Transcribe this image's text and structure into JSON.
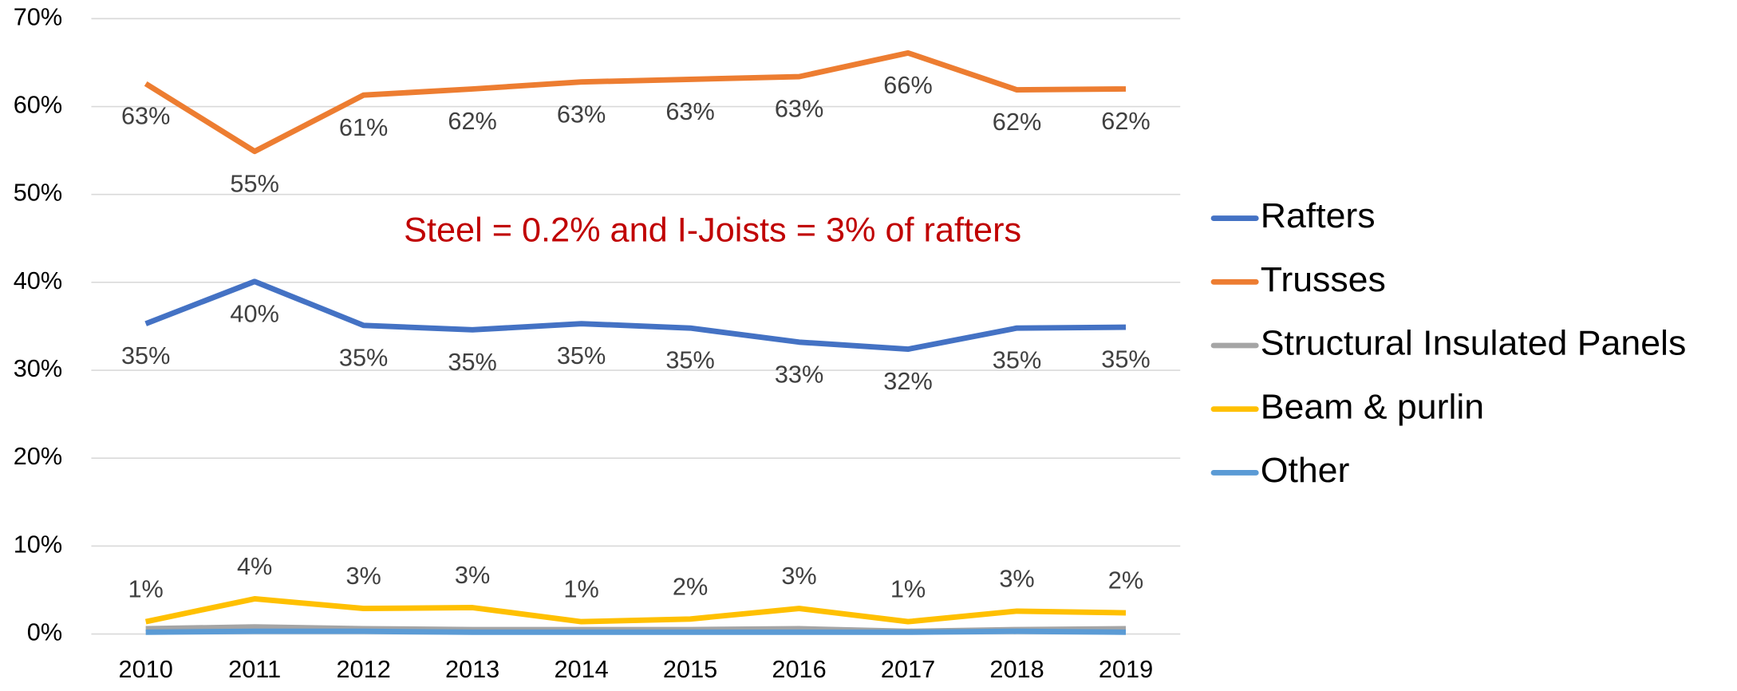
{
  "chart_data": {
    "type": "line",
    "annotation": "Steel = 0.2% and I-Joists = 3% of rafters",
    "categories": [
      "2010",
      "2011",
      "2012",
      "2013",
      "2014",
      "2015",
      "2016",
      "2017",
      "2018",
      "2019"
    ],
    "series": [
      {
        "name": "Rafters",
        "color": "#4472C4",
        "label_position": "below",
        "values": [
          35.3,
          40.1,
          35.1,
          34.6,
          35.3,
          34.8,
          33.2,
          32.4,
          34.8,
          34.9
        ],
        "value_labels": [
          "35%",
          "40%",
          "35%",
          "35%",
          "35%",
          "35%",
          "33%",
          "32%",
          "35%",
          "35%"
        ]
      },
      {
        "name": "Trusses",
        "color": "#ED7D31",
        "label_position": "below",
        "values": [
          62.6,
          54.9,
          61.3,
          62.0,
          62.8,
          63.1,
          63.4,
          66.1,
          61.9,
          62.0
        ],
        "value_labels": [
          "63%",
          "55%",
          "61%",
          "62%",
          "63%",
          "63%",
          "63%",
          "66%",
          "62%",
          "62%"
        ]
      },
      {
        "name": "Structural Insulated Panels",
        "color": "#A5A5A5",
        "values": [
          0.6,
          0.8,
          0.6,
          0.5,
          0.5,
          0.5,
          0.6,
          0.3,
          0.5,
          0.6
        ]
      },
      {
        "name": "Beam & purlin",
        "color": "#FFC000",
        "label_position": "above",
        "values": [
          1.4,
          4.0,
          2.9,
          3.0,
          1.4,
          1.7,
          2.9,
          1.4,
          2.6,
          2.4
        ],
        "value_labels": [
          "1%",
          "4%",
          "3%",
          "3%",
          "1%",
          "2%",
          "3%",
          "1%",
          "3%",
          "2%"
        ]
      },
      {
        "name": "Other",
        "color": "#5B9BD5",
        "values": [
          0.2,
          0.3,
          0.3,
          0.2,
          0.2,
          0.2,
          0.2,
          0.2,
          0.3,
          0.2
        ]
      }
    ],
    "ylim": [
      0,
      70
    ],
    "yticks": [
      {
        "value": 0,
        "label": "0%"
      },
      {
        "value": 10,
        "label": "10%"
      },
      {
        "value": 20,
        "label": "20%"
      },
      {
        "value": 30,
        "label": "30%"
      },
      {
        "value": 40,
        "label": "40%"
      },
      {
        "value": 50,
        "label": "50%"
      },
      {
        "value": 60,
        "label": "60%"
      },
      {
        "value": 70,
        "label": "70%"
      }
    ],
    "grid": true,
    "legend": "right"
  }
}
